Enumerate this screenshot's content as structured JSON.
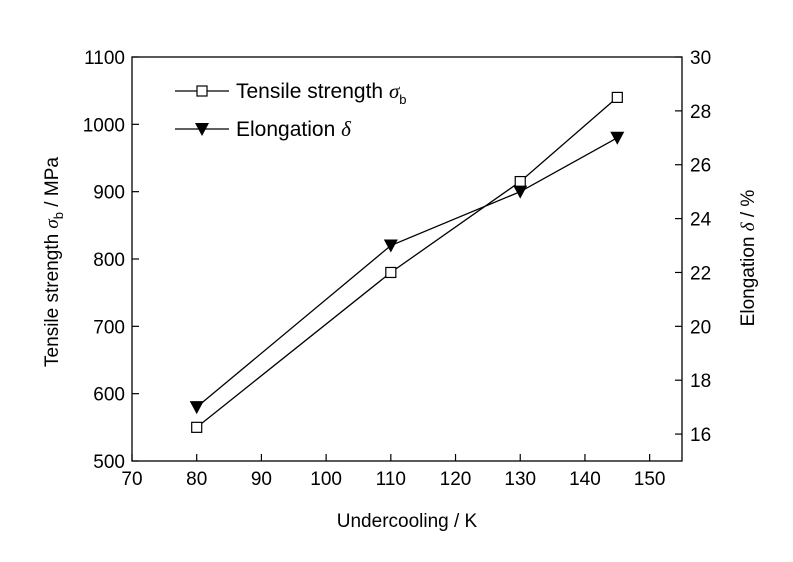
{
  "chart_data": {
    "type": "line",
    "x_axis": {
      "label": "Undercooling / K",
      "range": [
        70,
        155
      ],
      "ticks": [
        70,
        80,
        90,
        100,
        110,
        120,
        130,
        140,
        150
      ]
    },
    "y_axis_left": {
      "label_prefix": "Tensile strength",
      "label_symbol": "σ",
      "label_subscript": "b",
      "label_suffix": "/ MPa",
      "range": [
        500,
        1100
      ],
      "ticks": [
        500,
        600,
        700,
        800,
        900,
        1000,
        1100
      ]
    },
    "y_axis_right": {
      "label_prefix": "Elongation",
      "label_symbol": "δ",
      "label_suffix": "/ %",
      "range": [
        15,
        30
      ],
      "ticks": [
        16,
        18,
        20,
        22,
        24,
        26,
        28,
        30
      ]
    },
    "series": [
      {
        "name_prefix": "Tensile strength",
        "name_symbol": "σ",
        "name_subscript": "b",
        "marker": "open-square",
        "axis": "left",
        "x": [
          80,
          110,
          130,
          145
        ],
        "y": [
          550,
          780,
          915,
          1040
        ]
      },
      {
        "name_prefix": "Elongation",
        "name_symbol": "δ",
        "marker": "filled-down-triangle",
        "axis": "right",
        "x": [
          80,
          110,
          130,
          145
        ],
        "y": [
          17,
          23,
          25,
          27
        ]
      }
    ],
    "legend_position": "top-left",
    "grid": false
  }
}
